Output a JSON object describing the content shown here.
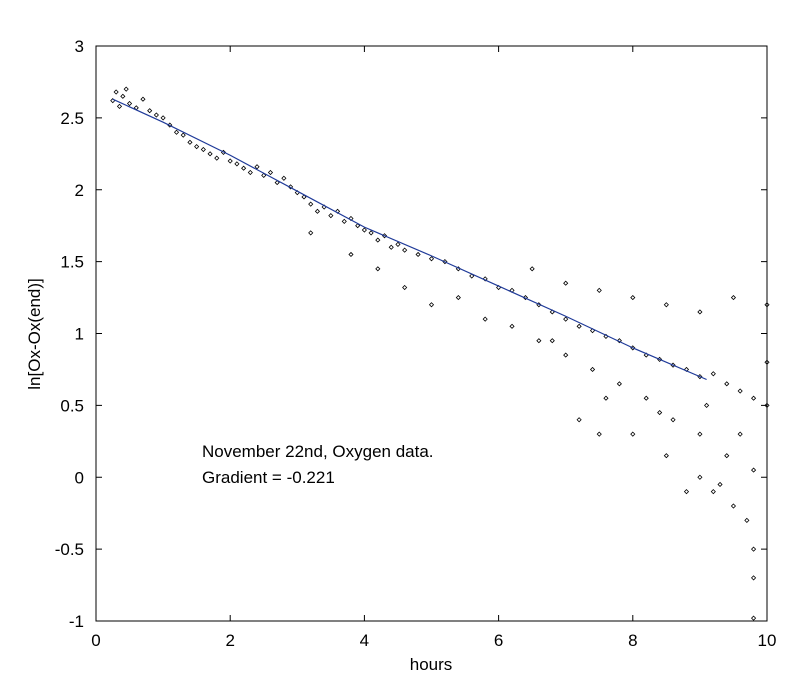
{
  "chart_data": {
    "type": "scatter",
    "title": "",
    "xlabel": "hours",
    "ylabel": "ln[Ox-Ox(end)]",
    "xlim": [
      0,
      10
    ],
    "ylim": [
      -1,
      3
    ],
    "x_ticks": [
      "0",
      "2",
      "4",
      "6",
      "8",
      "10"
    ],
    "y_ticks": [
      "-1",
      "-0.5",
      "0",
      "0.5",
      "1",
      "1.5",
      "2",
      "2.5",
      "3"
    ],
    "grid": false,
    "annotations": [
      "November 22nd, Oxygen data.",
      "Gradient = -0.221"
    ],
    "series": [
      {
        "type": "scatter",
        "color": "#000000",
        "marker": "small-open-diamond",
        "points": [
          [
            0.25,
            2.62
          ],
          [
            0.3,
            2.68
          ],
          [
            0.35,
            2.58
          ],
          [
            0.4,
            2.65
          ],
          [
            0.45,
            2.7
          ],
          [
            0.5,
            2.6
          ],
          [
            0.6,
            2.57
          ],
          [
            0.7,
            2.63
          ],
          [
            0.8,
            2.55
          ],
          [
            0.9,
            2.52
          ],
          [
            1.0,
            2.5
          ],
          [
            1.1,
            2.45
          ],
          [
            1.2,
            2.4
          ],
          [
            1.3,
            2.38
          ],
          [
            1.4,
            2.33
          ],
          [
            1.5,
            2.3
          ],
          [
            1.6,
            2.28
          ],
          [
            1.7,
            2.25
          ],
          [
            1.8,
            2.22
          ],
          [
            1.9,
            2.26
          ],
          [
            2.0,
            2.2
          ],
          [
            2.1,
            2.18
          ],
          [
            2.2,
            2.15
          ],
          [
            2.3,
            2.12
          ],
          [
            2.4,
            2.16
          ],
          [
            2.5,
            2.1
          ],
          [
            2.6,
            2.12
          ],
          [
            2.7,
            2.05
          ],
          [
            2.8,
            2.08
          ],
          [
            2.9,
            2.02
          ],
          [
            3.0,
            1.98
          ],
          [
            3.1,
            1.95
          ],
          [
            3.2,
            1.9
          ],
          [
            3.3,
            1.85
          ],
          [
            3.4,
            1.88
          ],
          [
            3.5,
            1.82
          ],
          [
            3.6,
            1.85
          ],
          [
            3.7,
            1.78
          ],
          [
            3.8,
            1.8
          ],
          [
            3.9,
            1.75
          ],
          [
            4.0,
            1.72
          ],
          [
            4.1,
            1.7
          ],
          [
            4.2,
            1.65
          ],
          [
            4.3,
            1.68
          ],
          [
            4.4,
            1.6
          ],
          [
            4.5,
            1.62
          ],
          [
            4.6,
            1.58
          ],
          [
            4.8,
            1.55
          ],
          [
            5.0,
            1.52
          ],
          [
            5.2,
            1.5
          ],
          [
            5.4,
            1.45
          ],
          [
            5.6,
            1.4
          ],
          [
            5.8,
            1.38
          ],
          [
            6.0,
            1.32
          ],
          [
            6.2,
            1.3
          ],
          [
            6.4,
            1.25
          ],
          [
            6.6,
            1.2
          ],
          [
            6.8,
            1.15
          ],
          [
            7.0,
            1.1
          ],
          [
            7.2,
            1.05
          ],
          [
            7.4,
            1.02
          ],
          [
            7.6,
            0.98
          ],
          [
            7.8,
            0.95
          ],
          [
            8.0,
            0.9
          ],
          [
            8.2,
            0.85
          ],
          [
            8.4,
            0.82
          ],
          [
            8.6,
            0.78
          ],
          [
            8.8,
            0.75
          ],
          [
            9.0,
            0.7
          ],
          [
            9.2,
            0.72
          ],
          [
            9.4,
            0.65
          ],
          [
            9.6,
            0.6
          ],
          [
            9.8,
            0.55
          ],
          [
            10.0,
            0.5
          ],
          [
            3.2,
            1.7
          ],
          [
            3.8,
            1.55
          ],
          [
            4.2,
            1.45
          ],
          [
            4.6,
            1.32
          ],
          [
            5.0,
            1.2
          ],
          [
            5.4,
            1.25
          ],
          [
            5.8,
            1.1
          ],
          [
            6.2,
            1.05
          ],
          [
            6.6,
            0.95
          ],
          [
            7.0,
            0.85
          ],
          [
            7.4,
            0.75
          ],
          [
            7.8,
            0.65
          ],
          [
            8.2,
            0.55
          ],
          [
            8.6,
            0.4
          ],
          [
            9.0,
            0.3
          ],
          [
            9.4,
            0.15
          ],
          [
            9.8,
            0.05
          ],
          [
            8.0,
            0.3
          ],
          [
            8.5,
            0.15
          ],
          [
            9.0,
            0.0
          ],
          [
            9.2,
            -0.1
          ],
          [
            9.5,
            -0.2
          ],
          [
            9.7,
            -0.3
          ],
          [
            9.8,
            -0.5
          ],
          [
            9.8,
            -0.7
          ],
          [
            9.8,
            -0.98
          ],
          [
            7.5,
            0.3
          ],
          [
            7.2,
            0.4
          ],
          [
            8.8,
            -0.1
          ],
          [
            9.3,
            -0.05
          ],
          [
            6.5,
            1.45
          ],
          [
            7.0,
            1.35
          ],
          [
            7.5,
            1.3
          ],
          [
            8.0,
            1.25
          ],
          [
            8.5,
            1.2
          ],
          [
            9.0,
            1.15
          ],
          [
            9.5,
            1.25
          ],
          [
            10.0,
            1.2
          ],
          [
            6.8,
            0.95
          ],
          [
            7.6,
            0.55
          ],
          [
            8.4,
            0.45
          ],
          [
            9.1,
            0.5
          ],
          [
            9.6,
            0.3
          ],
          [
            10.0,
            0.8
          ]
        ]
      },
      {
        "type": "line",
        "color": "#1f3a99",
        "name": "",
        "points": [
          [
            0.25,
            2.63
          ],
          [
            1.0,
            2.47
          ],
          [
            2.0,
            2.24
          ],
          [
            3.0,
            1.99
          ],
          [
            4.0,
            1.74
          ],
          [
            5.0,
            1.54
          ],
          [
            6.0,
            1.33
          ],
          [
            7.0,
            1.12
          ],
          [
            8.0,
            0.9
          ],
          [
            9.1,
            0.68
          ]
        ]
      }
    ]
  }
}
